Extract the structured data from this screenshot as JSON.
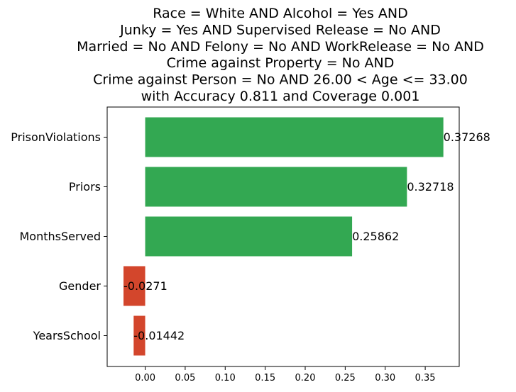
{
  "chart_data": {
    "type": "bar",
    "orientation": "horizontal",
    "title_lines": [
      "Race = White AND Alcohol = Yes AND",
      "Junky = Yes AND Supervised Release = No AND",
      "Married = No AND Felony = No AND WorkRelease = No AND",
      "Crime against Property = No AND",
      "Crime against Person = No AND 26.00 < Age <= 33.00",
      "with Accuracy 0.811 and Coverage 0.001"
    ],
    "categories": [
      "PrisonViolations",
      "Priors",
      "MonthsServed",
      "Gender",
      "YearsSchool"
    ],
    "values": [
      0.37268,
      0.32718,
      0.25862,
      -0.0271,
      -0.01442
    ],
    "value_labels": [
      "0.37268",
      "0.32718",
      "0.25862",
      "-0.0271",
      "-0.01442"
    ],
    "xticks": [
      0.0,
      0.05,
      0.1,
      0.15,
      0.2,
      0.25,
      0.3,
      0.35
    ],
    "xtick_labels": [
      "0.00",
      "0.05",
      "0.10",
      "0.15",
      "0.20",
      "0.25",
      "0.30",
      "0.35"
    ],
    "xlim": [
      -0.0475,
      0.3925
    ],
    "xlabel": "",
    "ylabel": "",
    "grid": false,
    "colors": {
      "positive": "#33a852",
      "negative": "#d3462c"
    }
  }
}
